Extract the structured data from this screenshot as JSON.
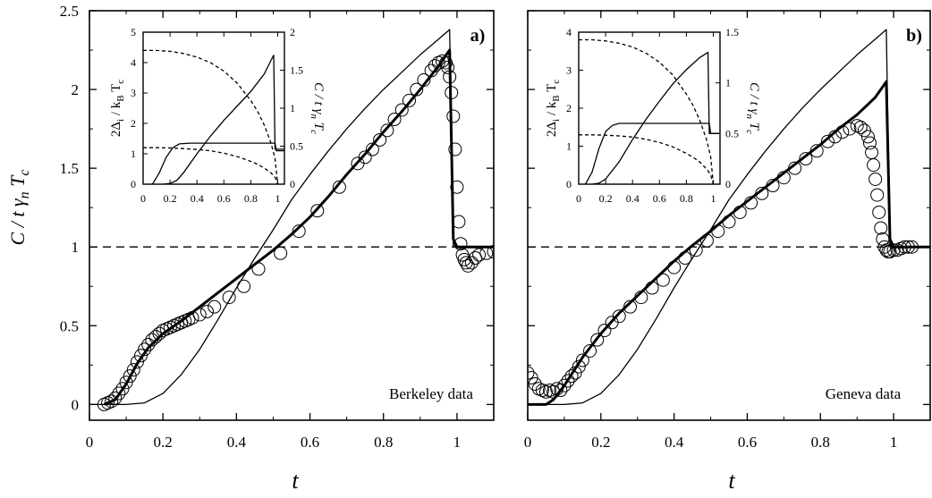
{
  "chart_data": [
    {
      "panel": "a)",
      "type": "line",
      "annotation": "Berkeley data",
      "xlabel": "t",
      "ylabel": "C / t γn Tc",
      "xlim": [
        0,
        1.1
      ],
      "ylim": [
        -0.1,
        2.5
      ],
      "xticks": [
        "0",
        "0.2",
        "0.4",
        "0.6",
        "0.8",
        "1"
      ],
      "yticks": [
        "0",
        "0.5",
        "1",
        "1.5",
        "2",
        "2.5"
      ],
      "reference_line": {
        "y": 1,
        "style": "dashed"
      },
      "series": [
        {
          "style": "thin-line",
          "x": [
            0,
            0.1,
            0.15,
            0.2,
            0.25,
            0.3,
            0.35,
            0.4,
            0.45,
            0.5,
            0.55,
            0.6,
            0.65,
            0.7,
            0.75,
            0.8,
            0.85,
            0.9,
            0.95,
            0.98,
            0.99,
            1.0,
            1.1
          ],
          "y": [
            0,
            0,
            0.01,
            0.07,
            0.19,
            0.35,
            0.54,
            0.74,
            0.93,
            1.11,
            1.3,
            1.46,
            1.61,
            1.75,
            1.88,
            2.0,
            2.11,
            2.22,
            2.32,
            2.38,
            1.0,
            1.0,
            1.0
          ]
        },
        {
          "style": "thick-line",
          "x": [
            0.04,
            0.07,
            0.1,
            0.13,
            0.16,
            0.2,
            0.25,
            0.3,
            0.35,
            0.4,
            0.45,
            0.5,
            0.55,
            0.6,
            0.65,
            0.7,
            0.75,
            0.8,
            0.85,
            0.9,
            0.95,
            0.98,
            0.99,
            1.0,
            1.1
          ],
          "y": [
            0,
            0.03,
            0.13,
            0.26,
            0.36,
            0.45,
            0.53,
            0.62,
            0.71,
            0.8,
            0.89,
            0.98,
            1.08,
            1.19,
            1.32,
            1.46,
            1.59,
            1.73,
            1.86,
            2.0,
            2.15,
            2.25,
            1.05,
            1.0,
            1.0
          ]
        },
        {
          "style": "open-circles",
          "x": [
            0.04,
            0.05,
            0.06,
            0.07,
            0.08,
            0.09,
            0.1,
            0.11,
            0.12,
            0.13,
            0.14,
            0.15,
            0.16,
            0.17,
            0.18,
            0.19,
            0.2,
            0.21,
            0.22,
            0.23,
            0.24,
            0.25,
            0.26,
            0.27,
            0.28,
            0.3,
            0.32,
            0.34,
            0.38,
            0.42,
            0.46,
            0.52,
            0.57,
            0.62,
            0.68,
            0.73,
            0.75,
            0.77,
            0.79,
            0.81,
            0.83,
            0.85,
            0.87,
            0.89,
            0.91,
            0.93,
            0.94,
            0.95,
            0.96,
            0.97,
            0.975,
            0.98,
            0.985,
            0.99,
            0.995,
            1.0,
            1.005,
            1.01,
            1.015,
            1.02,
            1.025,
            1.03,
            1.04,
            1.05,
            1.06,
            1.08,
            1.1
          ],
          "y": [
            0,
            0.01,
            0.02,
            0.04,
            0.07,
            0.1,
            0.14,
            0.18,
            0.22,
            0.27,
            0.31,
            0.35,
            0.38,
            0.41,
            0.43,
            0.45,
            0.47,
            0.48,
            0.49,
            0.5,
            0.51,
            0.52,
            0.53,
            0.54,
            0.55,
            0.57,
            0.59,
            0.62,
            0.68,
            0.75,
            0.86,
            0.96,
            1.1,
            1.23,
            1.38,
            1.53,
            1.57,
            1.62,
            1.68,
            1.74,
            1.81,
            1.87,
            1.93,
            2.0,
            2.06,
            2.12,
            2.15,
            2.17,
            2.18,
            2.17,
            2.14,
            2.08,
            1.98,
            1.83,
            1.62,
            1.38,
            1.16,
            1.02,
            0.95,
            0.92,
            0.9,
            0.88,
            0.9,
            0.93,
            0.95,
            0.96,
            0.97
          ]
        }
      ],
      "inset": {
        "xlim": [
          0,
          1.05
        ],
        "ylim_left": [
          0,
          5
        ],
        "ylim_right": [
          0,
          2
        ],
        "xticks": [
          "0",
          "0.2",
          "0.4",
          "0.6",
          "0.8",
          "1"
        ],
        "yticks_left": [
          "0",
          "1",
          "2",
          "3",
          "4",
          "5"
        ],
        "yticks_right": [
          "0",
          "0.5",
          "1",
          "1.5",
          "2"
        ],
        "ylabel_left": "2Δi / kB Tc",
        "ylabel_right": "C / t γn Tc",
        "series": [
          {
            "style": "dashed",
            "axis": "left",
            "x": [
              0,
              0.1,
              0.2,
              0.3,
              0.4,
              0.5,
              0.6,
              0.7,
              0.8,
              0.85,
              0.9,
              0.95,
              0.98,
              1.0
            ],
            "y": [
              4.4,
              4.4,
              4.37,
              4.3,
              4.18,
              4.0,
              3.72,
              3.32,
              2.75,
              2.4,
              1.95,
              1.35,
              0.85,
              0
            ]
          },
          {
            "style": "dashed",
            "axis": "left",
            "x": [
              0,
              0.1,
              0.2,
              0.3,
              0.4,
              0.5,
              0.6,
              0.7,
              0.8,
              0.85,
              0.9,
              0.95,
              0.98,
              1.0
            ],
            "y": [
              1.2,
              1.2,
              1.19,
              1.17,
              1.14,
              1.1,
              1.02,
              0.91,
              0.75,
              0.66,
              0.53,
              0.37,
              0.23,
              0
            ]
          },
          {
            "style": "solid",
            "axis": "right",
            "x": [
              0.07,
              0.12,
              0.17,
              0.22,
              0.27,
              0.35,
              0.5,
              0.7,
              0.9,
              0.98,
              0.99,
              1.0,
              1.05
            ],
            "y": [
              0,
              0.15,
              0.35,
              0.48,
              0.53,
              0.54,
              0.54,
              0.54,
              0.54,
              0.54,
              0.44,
              0.44,
              0.44
            ]
          },
          {
            "style": "solid",
            "axis": "right",
            "x": [
              0.15,
              0.2,
              0.25,
              0.3,
              0.4,
              0.5,
              0.6,
              0.7,
              0.8,
              0.9,
              0.97,
              0.98,
              1.0,
              1.05
            ],
            "y": [
              0,
              0.01,
              0.05,
              0.15,
              0.4,
              0.63,
              0.84,
              1.03,
              1.22,
              1.45,
              1.7,
              0.46,
              0.46,
              0.46
            ]
          }
        ]
      }
    },
    {
      "panel": "b)",
      "type": "line",
      "annotation": "Geneva data",
      "xlabel": "t",
      "xlim": [
        0,
        1.1
      ],
      "ylim": [
        -0.1,
        2.5
      ],
      "xticks": [
        "0",
        "0.2",
        "0.4",
        "0.6",
        "0.8",
        "1"
      ],
      "reference_line": {
        "y": 1,
        "style": "dashed"
      },
      "series": [
        {
          "style": "thin-line",
          "x": [
            0,
            0.1,
            0.15,
            0.2,
            0.25,
            0.3,
            0.35,
            0.4,
            0.45,
            0.5,
            0.55,
            0.6,
            0.65,
            0.7,
            0.75,
            0.8,
            0.85,
            0.9,
            0.95,
            0.98,
            0.99,
            1.0,
            1.1
          ],
          "y": [
            0,
            0,
            0.01,
            0.07,
            0.19,
            0.35,
            0.54,
            0.74,
            0.93,
            1.11,
            1.3,
            1.46,
            1.61,
            1.75,
            1.88,
            2.0,
            2.11,
            2.22,
            2.32,
            2.38,
            1.0,
            1.0,
            1.0
          ]
        },
        {
          "style": "thick-line",
          "x": [
            0,
            0.05,
            0.07,
            0.1,
            0.15,
            0.2,
            0.25,
            0.3,
            0.35,
            0.4,
            0.45,
            0.5,
            0.55,
            0.6,
            0.65,
            0.7,
            0.75,
            0.8,
            0.85,
            0.9,
            0.95,
            0.98,
            0.99,
            1.0,
            1.1
          ],
          "y": [
            0,
            0,
            0.03,
            0.12,
            0.3,
            0.45,
            0.58,
            0.69,
            0.8,
            0.91,
            1.01,
            1.1,
            1.2,
            1.29,
            1.38,
            1.47,
            1.56,
            1.65,
            1.75,
            1.84,
            1.95,
            2.05,
            1.05,
            1.0,
            1.0
          ]
        },
        {
          "style": "open-circles",
          "x": [
            0,
            0.01,
            0.02,
            0.03,
            0.04,
            0.05,
            0.06,
            0.07,
            0.08,
            0.09,
            0.1,
            0.11,
            0.12,
            0.13,
            0.14,
            0.15,
            0.17,
            0.19,
            0.21,
            0.23,
            0.25,
            0.28,
            0.31,
            0.34,
            0.37,
            0.4,
            0.43,
            0.46,
            0.49,
            0.52,
            0.55,
            0.58,
            0.61,
            0.64,
            0.67,
            0.7,
            0.73,
            0.76,
            0.79,
            0.82,
            0.84,
            0.86,
            0.88,
            0.9,
            0.91,
            0.92,
            0.93,
            0.935,
            0.94,
            0.945,
            0.95,
            0.955,
            0.96,
            0.965,
            0.97,
            0.975,
            0.98,
            0.985,
            0.99,
            1.0,
            1.01,
            1.02,
            1.03,
            1.04,
            1.05
          ],
          "y": [
            0.2,
            0.17,
            0.13,
            0.1,
            0.09,
            0.08,
            0.09,
            0.08,
            0.1,
            0.09,
            0.12,
            0.15,
            0.18,
            0.2,
            0.24,
            0.28,
            0.34,
            0.41,
            0.47,
            0.52,
            0.56,
            0.62,
            0.68,
            0.74,
            0.79,
            0.87,
            0.93,
            0.98,
            1.04,
            1.1,
            1.16,
            1.22,
            1.28,
            1.34,
            1.39,
            1.44,
            1.5,
            1.56,
            1.61,
            1.67,
            1.7,
            1.73,
            1.75,
            1.77,
            1.76,
            1.74,
            1.7,
            1.66,
            1.6,
            1.52,
            1.43,
            1.33,
            1.22,
            1.12,
            1.05,
            1.0,
            0.98,
            0.97,
            0.97,
            0.98,
            0.98,
            0.99,
            1.0,
            1.0,
            1.0
          ]
        }
      ],
      "inset": {
        "xlim": [
          0,
          1.05
        ],
        "ylim_left": [
          0,
          4
        ],
        "ylim_right": [
          0,
          1.5
        ],
        "xticks": [
          "0",
          "0.2",
          "0.4",
          "0.6",
          "0.8",
          "1"
        ],
        "yticks_left": [
          "0",
          "1",
          "2",
          "3",
          "4"
        ],
        "yticks_right": [
          "0",
          "0.5",
          "1",
          "1.5"
        ],
        "ylabel_left": "2Δi / kB Tc",
        "ylabel_right": "C / t γn Tc",
        "series": [
          {
            "style": "dashed",
            "axis": "left",
            "x": [
              0,
              0.1,
              0.2,
              0.3,
              0.4,
              0.5,
              0.6,
              0.7,
              0.8,
              0.85,
              0.9,
              0.95,
              0.98,
              1.0
            ],
            "y": [
              3.8,
              3.8,
              3.77,
              3.71,
              3.61,
              3.45,
              3.21,
              2.87,
              2.37,
              2.07,
              1.68,
              1.17,
              0.73,
              0
            ]
          },
          {
            "style": "dashed",
            "axis": "left",
            "x": [
              0,
              0.1,
              0.2,
              0.3,
              0.4,
              0.5,
              0.6,
              0.7,
              0.8,
              0.85,
              0.9,
              0.95,
              0.98,
              1.0
            ],
            "y": [
              1.3,
              1.3,
              1.29,
              1.27,
              1.24,
              1.18,
              1.1,
              0.98,
              0.81,
              0.71,
              0.58,
              0.4,
              0.25,
              0
            ]
          },
          {
            "style": "solid",
            "axis": "right",
            "x": [
              0.05,
              0.1,
              0.15,
              0.2,
              0.25,
              0.3,
              0.5,
              0.7,
              0.9,
              0.97,
              0.98,
              1.0,
              1.05
            ],
            "y": [
              0,
              0.12,
              0.35,
              0.52,
              0.58,
              0.6,
              0.6,
              0.6,
              0.6,
              0.6,
              0.5,
              0.5,
              0.5
            ]
          },
          {
            "style": "solid",
            "axis": "right",
            "x": [
              0.1,
              0.15,
              0.2,
              0.3,
              0.4,
              0.5,
              0.6,
              0.7,
              0.8,
              0.9,
              0.96,
              0.97,
              1.0,
              1.05
            ],
            "y": [
              0,
              0.01,
              0.05,
              0.22,
              0.44,
              0.64,
              0.82,
              0.99,
              1.13,
              1.25,
              1.3,
              0.5,
              0.5,
              0.5
            ]
          }
        ]
      }
    }
  ]
}
